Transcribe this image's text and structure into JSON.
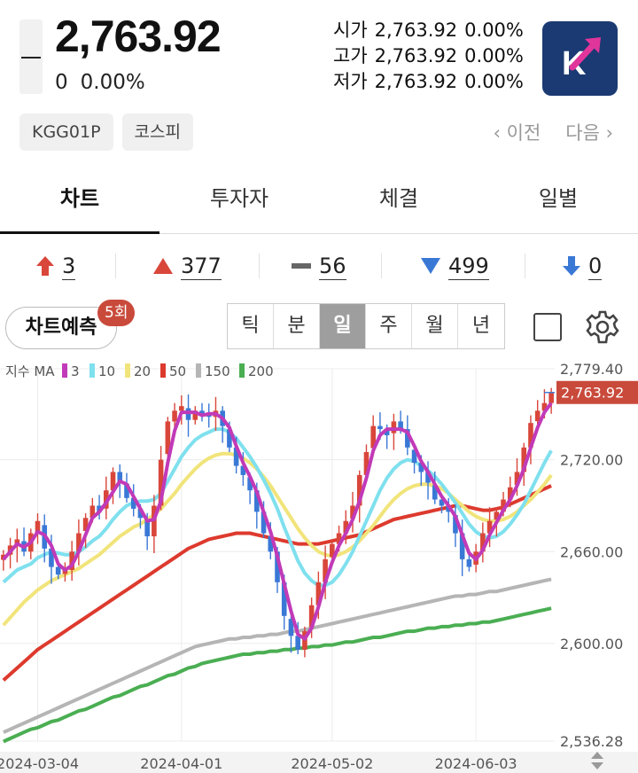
{
  "header": {
    "price": "2,763.92",
    "change": "0",
    "change_pct": "0.00%",
    "ohl": [
      {
        "label": "시가",
        "value": "2,763.92",
        "pct": "0.00%"
      },
      {
        "label": "고가",
        "value": "2,763.92",
        "pct": "0.00%"
      },
      {
        "label": "저가",
        "value": "2,763.92",
        "pct": "0.00%"
      }
    ],
    "logo_letter": "K"
  },
  "chips": [
    "KGG01P",
    "코스피"
  ],
  "nav": {
    "prev": "‹ 이전",
    "next": "다음 ›"
  },
  "tabs": [
    "차트",
    "투자자",
    "체결",
    "일별"
  ],
  "stats": {
    "upper_limit": "3",
    "rise": "377",
    "flat": "56",
    "fall": "499",
    "lower_limit": "0"
  },
  "toolbar": {
    "predict_label": "차트예측",
    "predict_badge": "5회",
    "periods": [
      "틱",
      "분",
      "일",
      "주",
      "월",
      "년"
    ],
    "active_period": "일"
  },
  "colors": {
    "up": "#d9463a",
    "down": "#3a78d6",
    "ma3": "#c13ab8",
    "ma10": "#7fe0ee",
    "ma20": "#f1e47a",
    "ma50": "#dd3a2e",
    "ma150": "#b5b5b5",
    "ma200": "#4aae52"
  },
  "chart_data": {
    "type": "candlestick",
    "legend_title": "지수 MA",
    "legend": [
      {
        "name": "3",
        "color": "#c13ab8"
      },
      {
        "name": "10",
        "color": "#7fe0ee"
      },
      {
        "name": "20",
        "color": "#f1e47a"
      },
      {
        "name": "50",
        "color": "#dd3a2e"
      },
      {
        "name": "150",
        "color": "#b5b5b5"
      },
      {
        "name": "200",
        "color": "#4aae52"
      }
    ],
    "y_ticks": [
      "2,779.40",
      "2,720.00",
      "2,660.00",
      "2,600.00",
      "2,536.28"
    ],
    "y_tick_values": [
      2779.4,
      2720,
      2660,
      2600,
      2536.28
    ],
    "ylim": [
      2536.28,
      2779.4
    ],
    "x_ticks": [
      "2024-03-04",
      "2024-04-01",
      "2024-05-02",
      "2024-06-03"
    ],
    "current_price_label": "2,763.92",
    "current_price": 2763.92,
    "closes": [
      2658,
      2664,
      2668,
      2660,
      2672,
      2680,
      2662,
      2650,
      2645,
      2648,
      2660,
      2672,
      2682,
      2690,
      2686,
      2700,
      2712,
      2706,
      2695,
      2688,
      2682,
      2670,
      2690,
      2720,
      2745,
      2752,
      2755,
      2746,
      2752,
      2750,
      2748,
      2752,
      2742,
      2728,
      2716,
      2710,
      2700,
      2686,
      2672,
      2660,
      2640,
      2618,
      2605,
      2596,
      2608,
      2625,
      2640,
      2655,
      2665,
      2672,
      2680,
      2690,
      2710,
      2725,
      2742,
      2740,
      2736,
      2745,
      2740,
      2728,
      2718,
      2712,
      2705,
      2694,
      2690,
      2686,
      2672,
      2655,
      2650,
      2660,
      2672,
      2680,
      2686,
      2694,
      2702,
      2712,
      2728,
      2744,
      2752,
      2757,
      2763.92
    ],
    "ma3": [
      2655,
      2660,
      2665,
      2663,
      2666,
      2673,
      2671,
      2664,
      2652,
      2648,
      2651,
      2660,
      2671,
      2682,
      2686,
      2692,
      2699,
      2706,
      2704,
      2696,
      2688,
      2680,
      2681,
      2693,
      2718,
      2739,
      2751,
      2751,
      2751,
      2749,
      2750,
      2750,
      2747,
      2741,
      2729,
      2718,
      2709,
      2699,
      2686,
      2673,
      2657,
      2639,
      2621,
      2606,
      2603,
      2610,
      2624,
      2640,
      2653,
      2664,
      2672,
      2681,
      2693,
      2708,
      2726,
      2736,
      2740,
      2740,
      2740,
      2738,
      2729,
      2719,
      2712,
      2704,
      2696,
      2690,
      2683,
      2671,
      2659,
      2655,
      2661,
      2671,
      2679,
      2687,
      2694,
      2703,
      2714,
      2728,
      2741,
      2751,
      2757
    ],
    "ma10": [
      2640,
      2644,
      2648,
      2650,
      2652,
      2656,
      2658,
      2660,
      2659,
      2658,
      2658,
      2660,
      2663,
      2667,
      2670,
      2675,
      2681,
      2686,
      2690,
      2692,
      2693,
      2693,
      2694,
      2698,
      2706,
      2714,
      2722,
      2728,
      2733,
      2736,
      2738,
      2740,
      2740,
      2738,
      2734,
      2728,
      2722,
      2715,
      2707,
      2698,
      2688,
      2676,
      2665,
      2654,
      2646,
      2641,
      2638,
      2638,
      2640,
      2645,
      2652,
      2660,
      2670,
      2680,
      2690,
      2700,
      2708,
      2714,
      2718,
      2720,
      2719,
      2716,
      2713,
      2709,
      2704,
      2698,
      2692,
      2685,
      2678,
      2673,
      2670,
      2669,
      2670,
      2673,
      2678,
      2684,
      2691,
      2700,
      2709,
      2718,
      2726
    ],
    "ma20": [
      2612,
      2617,
      2622,
      2627,
      2631,
      2635,
      2638,
      2641,
      2643,
      2645,
      2647,
      2649,
      2652,
      2655,
      2658,
      2662,
      2666,
      2670,
      2673,
      2676,
      2678,
      2681,
      2684,
      2688,
      2693,
      2698,
      2704,
      2709,
      2714,
      2718,
      2721,
      2723,
      2724,
      2724,
      2723,
      2721,
      2718,
      2714,
      2709,
      2703,
      2696,
      2689,
      2682,
      2675,
      2669,
      2664,
      2660,
      2658,
      2657,
      2658,
      2660,
      2663,
      2667,
      2672,
      2677,
      2683,
      2689,
      2694,
      2698,
      2701,
      2703,
      2704,
      2704,
      2703,
      2701,
      2698,
      2694,
      2690,
      2686,
      2683,
      2681,
      2680,
      2680,
      2681,
      2683,
      2686,
      2690,
      2694,
      2699,
      2704,
      2710
    ],
    "ma50": [
      2576,
      2580,
      2584,
      2588,
      2592,
      2596,
      2599,
      2602,
      2605,
      2608,
      2611,
      2614,
      2617,
      2620,
      2623,
      2626,
      2629,
      2632,
      2635,
      2638,
      2641,
      2644,
      2647,
      2650,
      2653,
      2656,
      2659,
      2662,
      2664,
      2666,
      2668,
      2669,
      2670,
      2671,
      2672,
      2672,
      2672,
      2671,
      2670,
      2669,
      2668,
      2667,
      2666,
      2665,
      2665,
      2665,
      2665,
      2666,
      2667,
      2668,
      2669,
      2670,
      2671,
      2673,
      2675,
      2677,
      2679,
      2681,
      2682,
      2683,
      2684,
      2685,
      2686,
      2687,
      2688,
      2689,
      2690,
      2690,
      2689,
      2688,
      2687,
      2687,
      2688,
      2689,
      2691,
      2693,
      2695,
      2697,
      2699,
      2701,
      2703
    ],
    "ma150": [
      2542,
      2544,
      2546,
      2548,
      2550,
      2552,
      2554,
      2556,
      2558,
      2560,
      2562,
      2564,
      2566,
      2568,
      2570,
      2572,
      2574,
      2576,
      2578,
      2580,
      2582,
      2584,
      2586,
      2588,
      2590,
      2592,
      2594,
      2596,
      2598,
      2599,
      2600,
      2601,
      2602,
      2603,
      2603,
      2604,
      2604,
      2605,
      2605,
      2606,
      2606,
      2607,
      2608,
      2608,
      2609,
      2610,
      2611,
      2612,
      2613,
      2614,
      2615,
      2616,
      2617,
      2618,
      2619,
      2620,
      2621,
      2622,
      2623,
      2624,
      2625,
      2626,
      2627,
      2628,
      2629,
      2630,
      2631,
      2631,
      2632,
      2632,
      2633,
      2634,
      2634,
      2635,
      2636,
      2637,
      2638,
      2639,
      2640,
      2641,
      2642
    ],
    "ma200": [
      2536,
      2538,
      2540,
      2542,
      2544,
      2545,
      2547,
      2549,
      2550,
      2552,
      2554,
      2556,
      2557,
      2559,
      2561,
      2563,
      2565,
      2566,
      2568,
      2570,
      2572,
      2573,
      2575,
      2577,
      2579,
      2580,
      2582,
      2584,
      2585,
      2587,
      2588,
      2589,
      2590,
      2591,
      2592,
      2593,
      2593,
      2594,
      2594,
      2595,
      2595,
      2596,
      2596,
      2597,
      2597,
      2598,
      2598,
      2599,
      2599,
      2600,
      2601,
      2601,
      2602,
      2603,
      2604,
      2604,
      2605,
      2606,
      2607,
      2608,
      2608,
      2609,
      2610,
      2610,
      2611,
      2611,
      2612,
      2612,
      2613,
      2613,
      2614,
      2614,
      2615,
      2616,
      2617,
      2618,
      2619,
      2620,
      2621,
      2622,
      2623
    ]
  }
}
